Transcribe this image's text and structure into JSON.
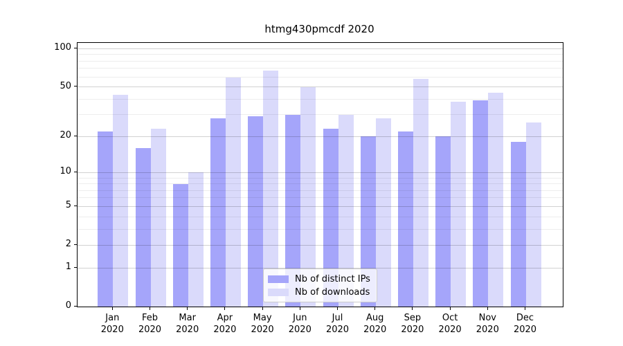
{
  "chart_data": {
    "type": "bar",
    "title": "htmg430pmcdf 2020",
    "categories": [
      "Jan",
      "Feb",
      "Mar",
      "Apr",
      "May",
      "Jun",
      "Jul",
      "Aug",
      "Sep",
      "Oct",
      "Nov",
      "Dec"
    ],
    "year_label": "2020",
    "series": [
      {
        "name": "Nb of distinct IPs",
        "color": "#a5a5fa",
        "values": [
          22,
          16,
          8,
          28,
          29,
          30,
          23,
          20,
          22,
          20,
          39,
          18
        ]
      },
      {
        "name": "Nb of downloads",
        "color": "#dadafb",
        "values": [
          43,
          23,
          10,
          59,
          67,
          50,
          30,
          28,
          58,
          38,
          45,
          26
        ]
      }
    ],
    "xlabel": "",
    "ylabel": "",
    "yscale": "log1p",
    "ylim": [
      0,
      111
    ],
    "y_major_ticks": [
      0,
      1,
      2,
      5,
      10,
      20,
      50,
      100
    ],
    "y_minor_ticks": [
      3,
      4,
      6,
      7,
      8,
      9,
      30,
      40,
      60,
      70,
      80,
      90
    ],
    "grid": true,
    "legend_position": "lower center"
  },
  "colors": {
    "grid_major": "rgba(0,0,0,0.18)",
    "grid_minor": "rgba(0,0,0,0.07)",
    "spine": "#000000",
    "legend_border": "#cccccc",
    "legend_background": "rgba(255,255,255,0.8)"
  }
}
